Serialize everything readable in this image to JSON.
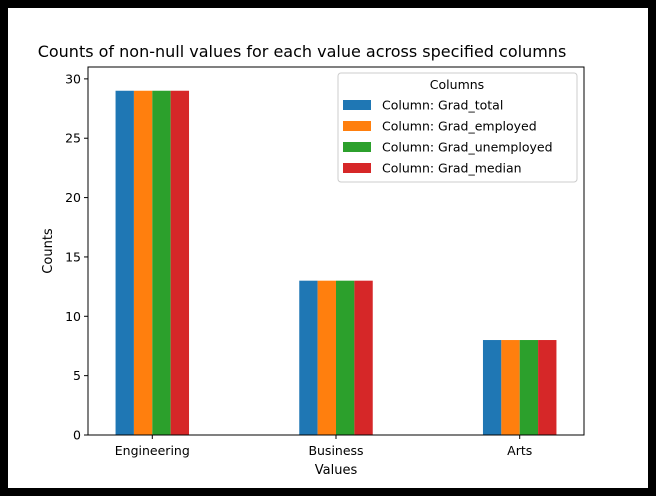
{
  "chart_data": {
    "type": "bar",
    "title": "Counts of non-null values for each value across specified columns",
    "xlabel": "Values",
    "ylabel": "Counts",
    "categories": [
      "Engineering",
      "Business",
      "Arts"
    ],
    "ylim": [
      0,
      31
    ],
    "yticks": [
      "0",
      "5",
      "10",
      "15",
      "20",
      "25",
      "30"
    ],
    "legend": {
      "title": "Columns",
      "placement": "upper-right"
    },
    "series": [
      {
        "name": "Column: Grad_total",
        "color": "#1f77b4",
        "values": [
          29,
          13,
          8
        ]
      },
      {
        "name": "Column: Grad_employed",
        "color": "#ff7f0e",
        "values": [
          29,
          13,
          8
        ]
      },
      {
        "name": "Column: Grad_unemployed",
        "color": "#2ca02c",
        "values": [
          29,
          13,
          8
        ]
      },
      {
        "name": "Column: Grad_median",
        "color": "#d62728",
        "values": [
          29,
          13,
          8
        ]
      }
    ]
  }
}
